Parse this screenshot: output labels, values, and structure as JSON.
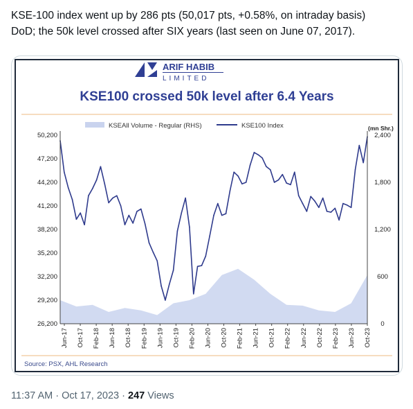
{
  "tweet": {
    "text_line1": "KSE-100 index went up by 286 pts (50,017 pts, +0.58%, on intraday basis)",
    "text_line2": "DoD; the 50k level crossed after SIX years (last seen on June 07, 2017).",
    "timestamp": "11:37 AM · Oct 17, 2023 · ",
    "views_count": "247",
    "views_label": " Views"
  },
  "logo": {
    "line1": "ARIF HABIB",
    "line2": "LIMITED"
  },
  "colors": {
    "index_line": "#2e3a8c",
    "volume_area": "#c9d3ee",
    "title": "#2f3f94",
    "accent_rule": "#f0c89a"
  },
  "chart_data": {
    "type": "line",
    "title": "KSE100 crossed 50k level after 6.4 Years",
    "legend": [
      "KSEAll Volume - Regular (RHS)",
      "KSE100 Index"
    ],
    "legend_position": "top",
    "y2_unit_label": "(mn Shr.)",
    "source": "Source: PSX, AHL Research",
    "x_tick_labels": [
      "Jun-17",
      "Oct-17",
      "Feb-18",
      "Jun-18",
      "Oct-18",
      "Feb-19",
      "Jun-19",
      "Oct-19",
      "Feb-20",
      "Jun-20",
      "Oct-20",
      "Feb-21",
      "Jun-21",
      "Oct-21",
      "Feb-22",
      "Jun-22",
      "Oct-22",
      "Feb-23",
      "Jun-23",
      "Oct-23"
    ],
    "y_ticks": [
      "50,200",
      "47,200",
      "44,200",
      "41,200",
      "38,200",
      "35,200",
      "32,200",
      "29,200",
      "26,200"
    ],
    "y2_ticks": [
      "2,400",
      "1,800",
      "1,200",
      "600",
      "0"
    ],
    "ylim": [
      26200,
      50200
    ],
    "y2lim": [
      0,
      2400
    ],
    "grid": false,
    "series": [
      {
        "name": "KSE100 Index",
        "axis": "left",
        "x": [
          "Jun-17",
          "Jul-17",
          "Aug-17",
          "Sep-17",
          "Oct-17",
          "Nov-17",
          "Dec-17",
          "Jan-18",
          "Feb-18",
          "Mar-18",
          "Apr-18",
          "May-18",
          "Jun-18",
          "Jul-18",
          "Aug-18",
          "Sep-18",
          "Oct-18",
          "Nov-18",
          "Dec-18",
          "Jan-19",
          "Feb-19",
          "Mar-19",
          "Apr-19",
          "May-19",
          "Jun-19",
          "Jul-19",
          "Aug-19",
          "Sep-19",
          "Oct-19",
          "Nov-19",
          "Dec-19",
          "Jan-20",
          "Feb-20",
          "Mar-20",
          "Apr-20",
          "May-20",
          "Jun-20",
          "Jul-20",
          "Aug-20",
          "Sep-20",
          "Oct-20",
          "Nov-20",
          "Dec-20",
          "Jan-21",
          "Feb-21",
          "Mar-21",
          "Apr-21",
          "May-21",
          "Jun-21",
          "Jul-21",
          "Aug-21",
          "Sep-21",
          "Oct-21",
          "Nov-21",
          "Dec-21",
          "Jan-22",
          "Feb-22",
          "Mar-22",
          "Apr-22",
          "May-22",
          "Jun-22",
          "Jul-22",
          "Aug-22",
          "Sep-22",
          "Oct-22",
          "Nov-22",
          "Dec-22",
          "Jan-23",
          "Feb-23",
          "Mar-23",
          "Apr-23",
          "May-23",
          "Jun-23",
          "Jul-23",
          "Aug-23",
          "Sep-23",
          "Oct-23"
        ],
        "values": [
          49500,
          45500,
          43500,
          42000,
          39500,
          40300,
          38800,
          42500,
          43400,
          44500,
          46200,
          44000,
          41600,
          42200,
          42500,
          41200,
          38800,
          40000,
          39000,
          40500,
          40800,
          38900,
          36500,
          35300,
          34200,
          31000,
          29200,
          31200,
          33000,
          38000,
          40300,
          42200,
          38500,
          30000,
          33500,
          33600,
          34800,
          37400,
          40000,
          41500,
          40000,
          40200,
          43100,
          45500,
          45000,
          44000,
          44200,
          46400,
          48000,
          47700,
          47300,
          46200,
          45800,
          44200,
          44500,
          45200,
          44100,
          43900,
          45500,
          42500,
          41500,
          40500,
          42400,
          41800,
          41000,
          42200,
          40500,
          40400,
          40900,
          39400,
          41500,
          41300,
          41000,
          45800,
          48900,
          46700,
          50017
        ]
      },
      {
        "name": "KSEAll Volume - Regular (RHS)",
        "axis": "right",
        "x": [
          "Jun-17",
          "Oct-17",
          "Feb-18",
          "Jun-18",
          "Oct-18",
          "Feb-19",
          "Jun-19",
          "Oct-19",
          "Feb-20",
          "Jun-20",
          "Oct-20",
          "Feb-21",
          "Jun-21",
          "Oct-21",
          "Feb-22",
          "Jun-22",
          "Oct-22",
          "Feb-23",
          "Jun-23",
          "Oct-23"
        ],
        "values": [
          300,
          220,
          240,
          150,
          200,
          170,
          110,
          260,
          300,
          380,
          620,
          700,
          560,
          380,
          240,
          230,
          170,
          150,
          260,
          620
        ]
      }
    ]
  }
}
